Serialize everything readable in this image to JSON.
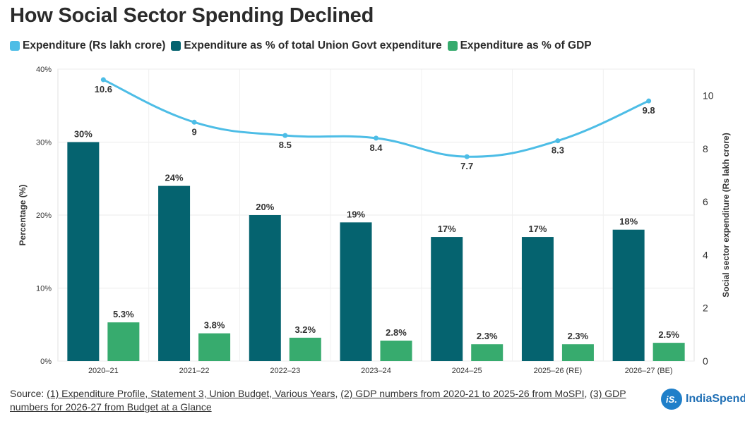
{
  "title": "How Social Sector Spending Declined",
  "legend": [
    {
      "label": "Expenditure (Rs lakh crore)",
      "color": "#4dbde6"
    },
    {
      "label": "Expenditure as % of total Union Govt expenditure",
      "color": "#05636f"
    },
    {
      "label": "Expenditure as % of GDP",
      "color": "#37ab6e"
    }
  ],
  "chart_data": {
    "type": "bar+line",
    "categories": [
      "2020–21",
      "2021–22",
      "2022–23",
      "2023–24",
      "2024–25",
      "2025–26 (RE)",
      "2026–27 (BE)"
    ],
    "series": [
      {
        "name": "Expenditure as % of total Union Govt expenditure",
        "type": "bar",
        "axis": "left",
        "values": [
          30,
          24,
          20,
          19,
          17,
          17,
          18
        ],
        "labels": [
          "30%",
          "24%",
          "20%",
          "19%",
          "17%",
          "17%",
          "18%"
        ],
        "color": "#05636f"
      },
      {
        "name": "Expenditure as % of GDP",
        "type": "bar",
        "axis": "left",
        "values": [
          5.3,
          3.8,
          3.2,
          2.8,
          2.3,
          2.3,
          2.5
        ],
        "labels": [
          "5.3%",
          "3.8%",
          "3.2%",
          "2.8%",
          "2.3%",
          "2.3%",
          "2.5%"
        ],
        "color": "#37ab6e"
      },
      {
        "name": "Expenditure (Rs lakh crore)",
        "type": "line",
        "axis": "right",
        "values": [
          10.6,
          9,
          8.5,
          8.4,
          7.7,
          8.3,
          9.8
        ],
        "labels": [
          "10.6",
          "9",
          "8.5",
          "8.4",
          "7.7",
          "8.3",
          "9.8"
        ],
        "color": "#4dbde6"
      }
    ],
    "left_axis": {
      "label": "Percentage (%)",
      "min": 0,
      "max": 40,
      "ticks": [
        0,
        10,
        20,
        30,
        40
      ],
      "tick_labels": [
        "0%",
        "10%",
        "20%",
        "30%",
        "40%"
      ]
    },
    "right_axis": {
      "label": "Social sector expenditure (Rs lakh crore)",
      "min": 0,
      "max": 11,
      "ticks": [
        0,
        2,
        4,
        6,
        8,
        10
      ],
      "tick_labels": [
        "0",
        "2",
        "4",
        "6",
        "8",
        "10"
      ]
    },
    "grid": true
  },
  "source": {
    "prefix": "Source: ",
    "parts": [
      {
        "text": "(1) Expenditure Profile, Statement 3, Union Budget, Various Years",
        "link": true
      },
      {
        "text": ", ",
        "link": false
      },
      {
        "text": "(2) GDP numbers from 2020-21 to 2025-26 from MoSPI",
        "link": true
      },
      {
        "text": ", ",
        "link": false
      },
      {
        "text": "(3) GDP numbers for 2026-27 from Budget at a Glance",
        "link": true
      }
    ]
  },
  "brand": {
    "logo_text": "iS.",
    "name": "IndiaSpend"
  }
}
